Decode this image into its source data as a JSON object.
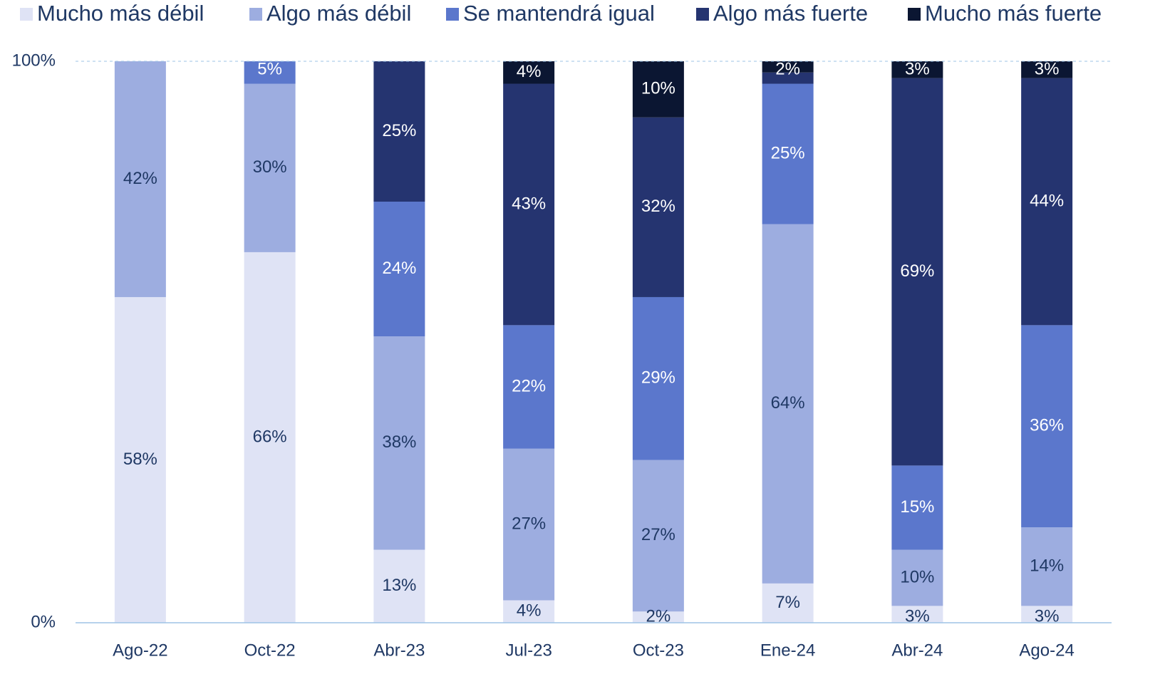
{
  "chart_data": {
    "type": "stacked_bar",
    "categories": [
      "Ago-22",
      "Oct-22",
      "Abr-23",
      "Jul-23",
      "Oct-23",
      "Ene-24",
      "Abr-24",
      "Ago-24"
    ],
    "series": [
      {
        "name": "Mucho más débil",
        "color": "#dfe3f5",
        "label_color": "#1f3864",
        "values": [
          58,
          66,
          13,
          4,
          2,
          7,
          3,
          3
        ],
        "value_labels": [
          "58%",
          "66%",
          "13%",
          "4%",
          "2%",
          "7%",
          "3%",
          "3%"
        ]
      },
      {
        "name": "Algo más débil",
        "color": "#9dade0",
        "label_color": "#1f3864",
        "values": [
          42,
          30,
          38,
          27,
          27,
          64,
          10,
          14
        ],
        "value_labels": [
          "42%",
          "30%",
          "38%",
          "27%",
          "27%",
          "64%",
          "10%",
          "14%"
        ]
      },
      {
        "name": "Se mantendrá igual",
        "color": "#5b77cc",
        "label_color": "#ffffff",
        "values": [
          0,
          5,
          24,
          22,
          29,
          25,
          15,
          36
        ],
        "value_labels": [
          null,
          "5%",
          "24%",
          "22%",
          "29%",
          "25%",
          "15%",
          "36%"
        ]
      },
      {
        "name": "Algo más fuerte",
        "color": "#253470",
        "label_color": "#ffffff",
        "values": [
          0,
          0,
          25,
          43,
          32,
          2,
          69,
          44
        ],
        "value_labels": [
          null,
          null,
          "25%",
          "43%",
          "32%",
          null,
          "69%",
          "44%"
        ]
      },
      {
        "name": "Mucho más fuerte",
        "color": "#0b1632",
        "label_color": "#ffffff",
        "values": [
          0,
          0,
          0,
          4,
          10,
          2,
          3,
          3
        ],
        "value_labels": [
          null,
          null,
          null,
          "4%",
          "10%",
          "2%",
          "3%",
          "3%"
        ]
      }
    ],
    "ylim": [
      0,
      100
    ],
    "yticks": [
      {
        "value": 0,
        "label": "0%"
      },
      {
        "value": 100,
        "label": "100%"
      }
    ],
    "legend": "top"
  }
}
